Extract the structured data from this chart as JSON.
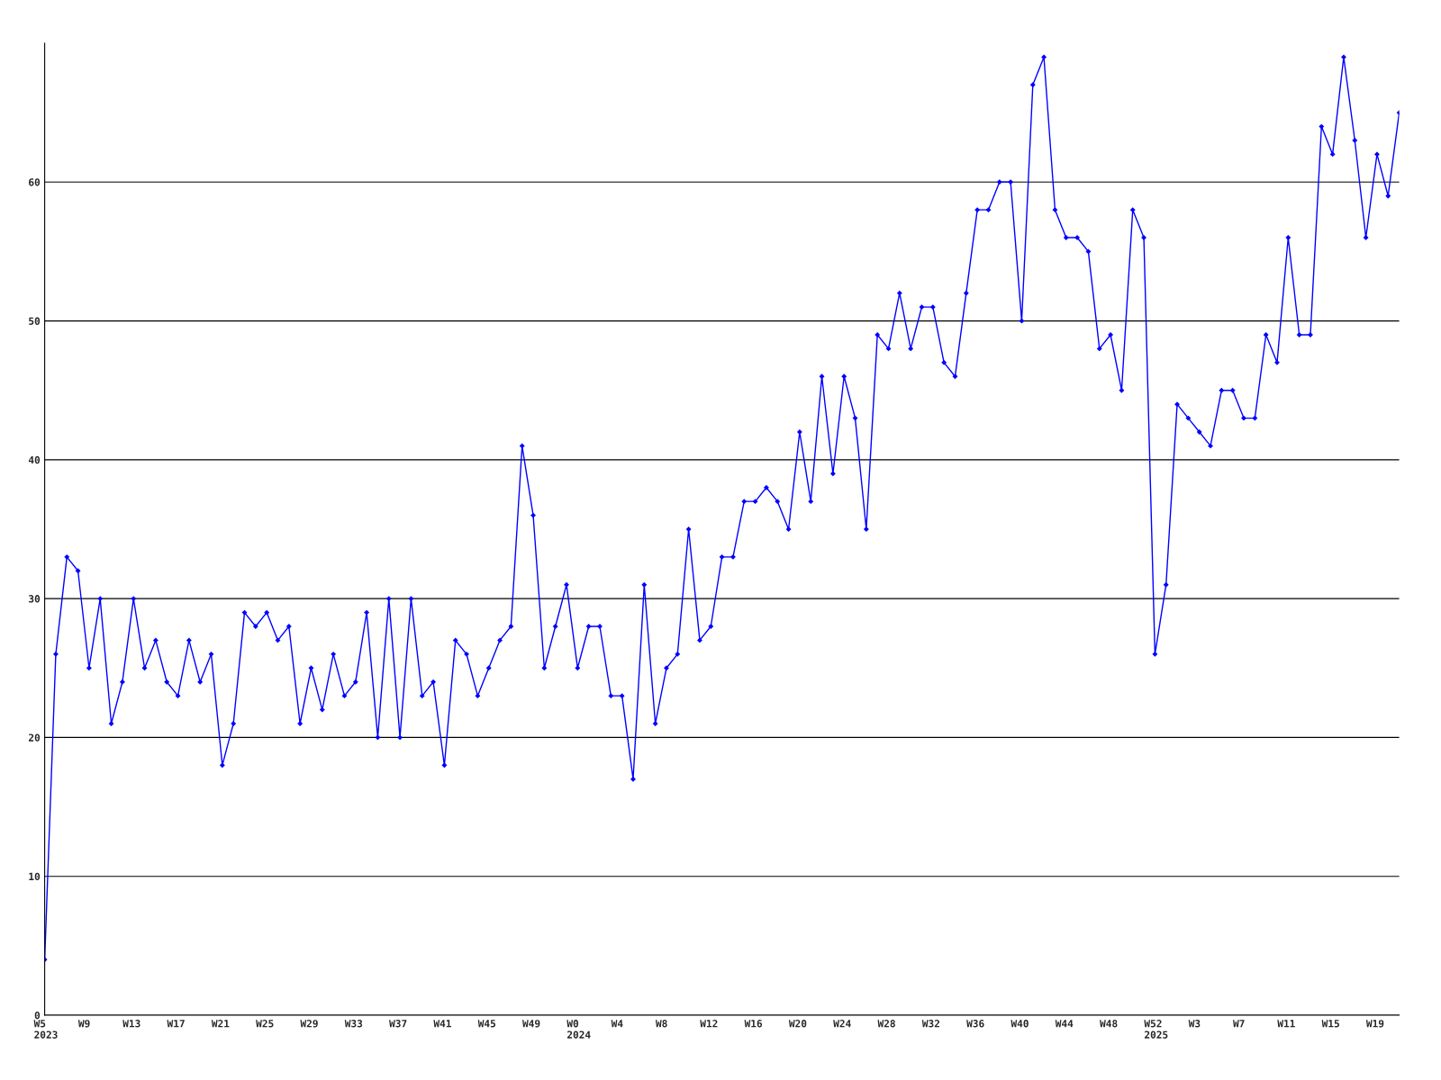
{
  "chart_data": {
    "type": "line",
    "categories": [
      "W5\n2023",
      null,
      null,
      null,
      "W9",
      null,
      null,
      null,
      "W13",
      null,
      null,
      null,
      "W17",
      null,
      null,
      null,
      "W21",
      null,
      null,
      null,
      "W25",
      null,
      null,
      null,
      "W29",
      null,
      null,
      null,
      "W33",
      null,
      null,
      null,
      "W37",
      null,
      null,
      null,
      "W41",
      null,
      null,
      null,
      "W45",
      null,
      null,
      null,
      "W49",
      null,
      null,
      null,
      "W0\n2024",
      null,
      null,
      null,
      "W4",
      null,
      null,
      null,
      "W8",
      null,
      null,
      null,
      "W12",
      null,
      null,
      null,
      "W16",
      null,
      null,
      null,
      "W20",
      null,
      null,
      null,
      "W24",
      null,
      null,
      null,
      "W28",
      null,
      null,
      null,
      "W32",
      null,
      null,
      null,
      "W36",
      null,
      null,
      null,
      "W40",
      null,
      null,
      null,
      "W44",
      null,
      null,
      null,
      "W48",
      null,
      null,
      null,
      "W52\n2025",
      null,
      null,
      null,
      "W3",
      null,
      null,
      null,
      "W7",
      null,
      null,
      null,
      "W11",
      null,
      null,
      null,
      "W15",
      null,
      null,
      null,
      "W19",
      null,
      null
    ],
    "series": [
      {
        "color": "#0000ff",
        "values": [
          4,
          26,
          33,
          32,
          25,
          30,
          21,
          24,
          30,
          25,
          27,
          24,
          23,
          27,
          24,
          26,
          18,
          21,
          29,
          28,
          29,
          27,
          28,
          21,
          25,
          22,
          26,
          23,
          24,
          29,
          20,
          30,
          20,
          30,
          23,
          24,
          18,
          27,
          26,
          23,
          25,
          27,
          28,
          41,
          36,
          25,
          28,
          31,
          25,
          28,
          28,
          23,
          23,
          17,
          31,
          21,
          25,
          26,
          35,
          27,
          28,
          33,
          33,
          37,
          37,
          38,
          37,
          35,
          42,
          37,
          46,
          39,
          46,
          43,
          35,
          49,
          48,
          52,
          48,
          51,
          51,
          47,
          46,
          52,
          58,
          58,
          60,
          60,
          50,
          67,
          69,
          58,
          56,
          56,
          55,
          48,
          49,
          45,
          58,
          56,
          26,
          31,
          44,
          43,
          42,
          41,
          45,
          45,
          43,
          43,
          49,
          47,
          56,
          49,
          49,
          64,
          62,
          69,
          63,
          56,
          62,
          59,
          65
        ]
      }
    ],
    "ylim": [
      0,
      70
    ],
    "yticks": [
      0,
      10,
      20,
      30,
      40,
      50,
      60
    ],
    "grid": "y",
    "marker": "diamond",
    "line_style": "solid"
  }
}
